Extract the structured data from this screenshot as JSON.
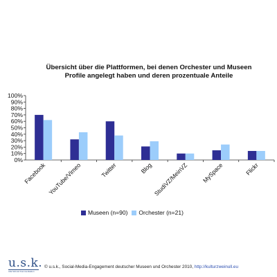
{
  "chart_data": {
    "type": "bar",
    "title_lines": [
      "Übersicht über die Plattformen, bei denen Orchester und Museen",
      "Profile angelegt haben und deren prozentuale Anteile"
    ],
    "categories": [
      "Facebook",
      "YouTube/Vimeo",
      "Twitter",
      "Blog",
      "StudiVZ/MeinVZ",
      "MySpace",
      "Flickr"
    ],
    "series": [
      {
        "name": "Museen (n=90)",
        "values": [
          70,
          32,
          60,
          21,
          10,
          15,
          14
        ],
        "color": "#2e2e94"
      },
      {
        "name": "Orchester (n=21)",
        "values": [
          62,
          43,
          38,
          29,
          10,
          24,
          14
        ],
        "color": "#9ccdfb"
      }
    ],
    "yticks": [
      "100%",
      "90%",
      "80%",
      "70%",
      "60%",
      "50%",
      "40%",
      "30%",
      "20%",
      "10%",
      "0%"
    ],
    "ylim": [
      0,
      100
    ],
    "grid": false,
    "legend_position": "bottom"
  },
  "footer": {
    "logo_text": "u.s.k.",
    "logo_subtext": "Ulla Schmid Kommunikation",
    "text": "© u.s.k., Social-Media-Engagement deutscher Museen und Orchester 2010,",
    "link": "http://kulturzweinull.eu"
  }
}
